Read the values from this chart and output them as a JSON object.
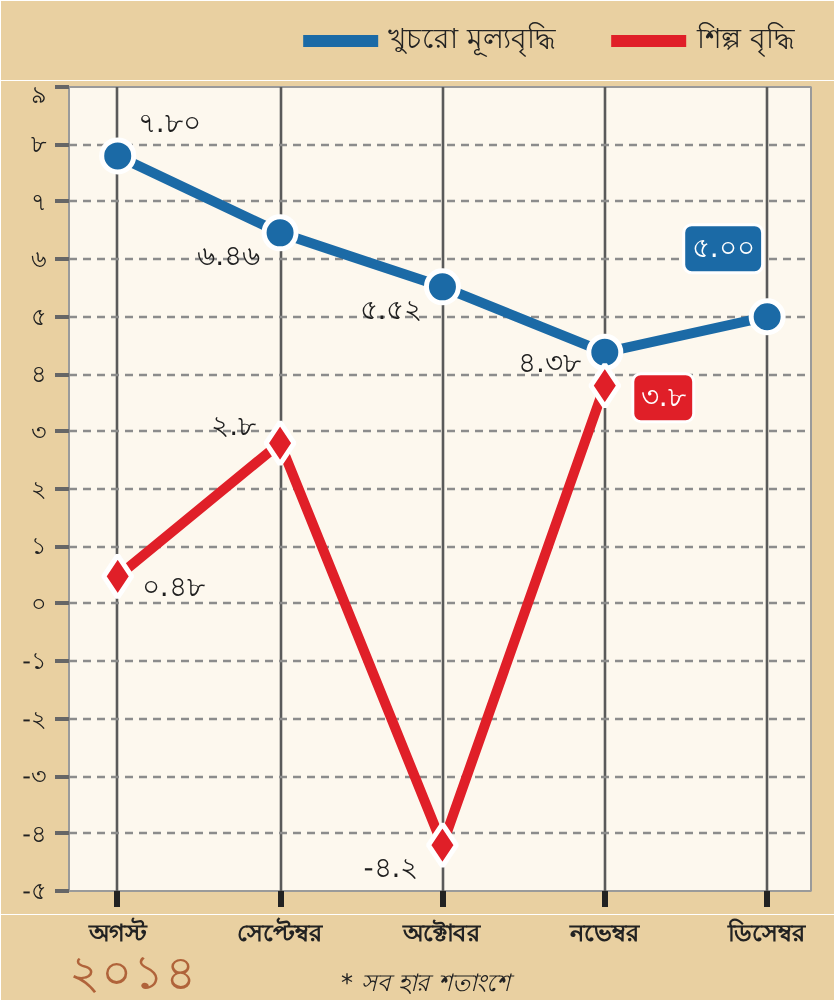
{
  "chart_data": {
    "type": "line",
    "categories": [
      "অগস্ট",
      "সেপ্টেম্বর",
      "অক্টোবর",
      "নভেম্বর",
      "ডিসেম্বর"
    ],
    "series": [
      {
        "name": "খুচরো মূল্যবৃদ্ধি",
        "color": "#1b6aa6",
        "marker": "circle",
        "values": [
          7.8,
          6.46,
          5.52,
          4.38,
          5.0
        ],
        "value_labels": [
          "৭.৮০",
          "৬.৪৬",
          "৫.৫২",
          "৪.৩৮",
          "৫.০০"
        ]
      },
      {
        "name": "শিল্প বৃদ্ধি",
        "color": "#e01f28",
        "marker": "diamond",
        "values": [
          0.48,
          2.8,
          -4.2,
          3.8,
          null
        ],
        "value_labels": [
          "০.৪৮",
          "২.৮",
          "-৪.২",
          "৩.৮",
          null
        ]
      }
    ],
    "ylim": [
      -5,
      9
    ],
    "yticks": [
      {
        "value": 9,
        "label": "৯"
      },
      {
        "value": 8,
        "label": "৮"
      },
      {
        "value": 7,
        "label": "৭"
      },
      {
        "value": 6,
        "label": "৬"
      },
      {
        "value": 5,
        "label": "৫"
      },
      {
        "value": 4,
        "label": "৪"
      },
      {
        "value": 3,
        "label": "৩"
      },
      {
        "value": 2,
        "label": "২"
      },
      {
        "value": 1,
        "label": "১"
      },
      {
        "value": 0,
        "label": "০"
      },
      {
        "value": -1,
        "label": "-১"
      },
      {
        "value": -2,
        "label": "-২"
      },
      {
        "value": -3,
        "label": "-৩"
      },
      {
        "value": -4,
        "label": "-৪"
      },
      {
        "value": -5,
        "label": "-৫"
      }
    ],
    "grid": true,
    "legend": "top right",
    "line_style": "solid",
    "annotations": [
      "২০১৪",
      "* সব হার শতাংশে"
    ]
  }
}
